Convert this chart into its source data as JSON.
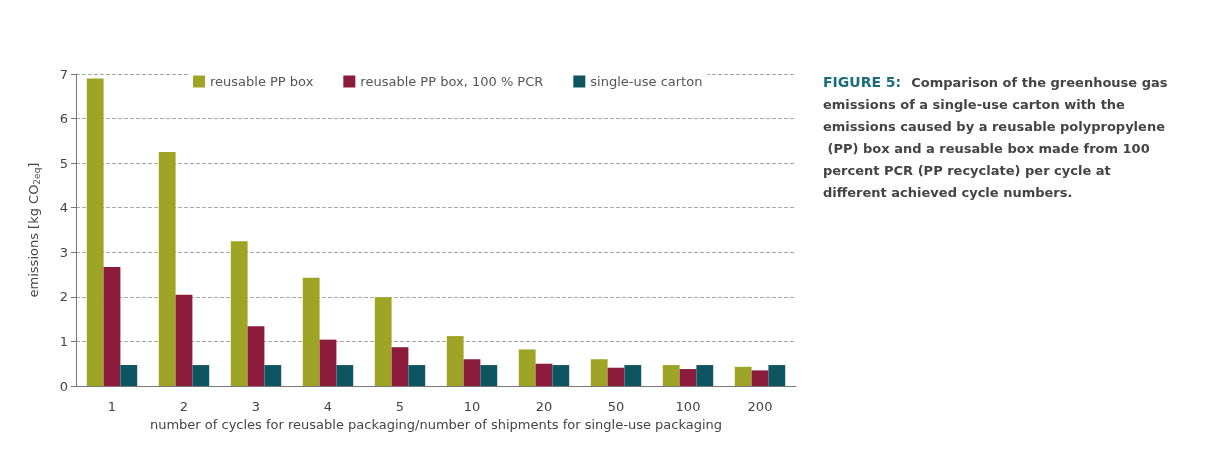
{
  "chart_data": {
    "type": "bar",
    "title": "FIGURE 5:",
    "subtitle": "Comparison of the greenhouse gas emissions of a single-use carton with the emissions caused by a reusable polypropylene (PP) box and a reusable box made from 100 percent PCR (PP recyclate) per cycle at different achieved cycle numbers.",
    "xlabel": "number of cycles for reusable packaging/number of shipments for single-use packaging",
    "ylabel": "emissions [kg CO$_{2eq}$]",
    "categories": [
      "1",
      "2",
      "3",
      "4",
      "5",
      "10",
      "20",
      "50",
      "100",
      "200"
    ],
    "series": [
      {
        "name": "reusable PP box",
        "color": "#9ea424",
        "values": [
          6.9,
          5.25,
          3.25,
          2.43,
          1.99,
          1.12,
          0.82,
          0.6,
          0.47,
          0.43
        ]
      },
      {
        "name": "reusable PP box, 100 % PCR",
        "color": "#8c1c3c",
        "values": [
          2.67,
          2.05,
          1.34,
          1.04,
          0.87,
          0.6,
          0.5,
          0.41,
          0.38,
          0.35
        ]
      },
      {
        "name": "single-use carton",
        "color": "#0d5560",
        "values": [
          0.47,
          0.47,
          0.47,
          0.47,
          0.47,
          0.47,
          0.47,
          0.47,
          0.47,
          0.47
        ]
      }
    ],
    "ylim": [
      0,
      7
    ],
    "yticks": [
      0,
      1,
      2,
      3,
      4,
      5,
      6,
      7
    ],
    "grid": "y",
    "legend": "top"
  }
}
